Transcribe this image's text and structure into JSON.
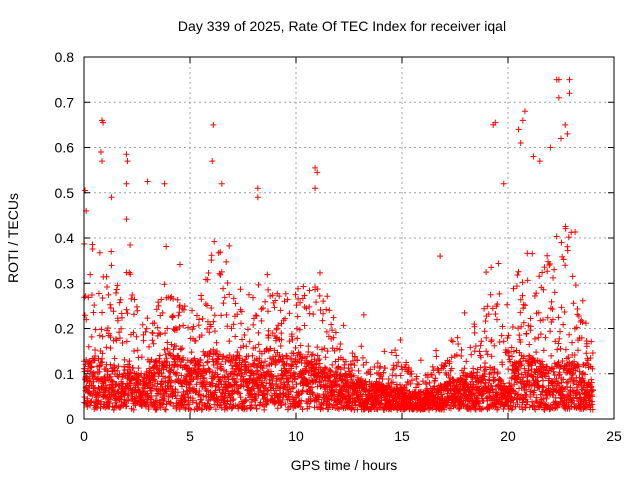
{
  "chart_data": {
    "type": "scatter",
    "title": "Day 339 of 2025, Rate Of TEC Index for receiver iqal",
    "xlabel": "GPS time / hours",
    "ylabel": "ROTI / TECUs",
    "xlim": [
      0,
      25
    ],
    "ylim": [
      0,
      0.8
    ],
    "x_ticks": [
      0,
      5,
      10,
      15,
      20,
      25
    ],
    "x_tick_labels": [
      "0",
      "5",
      "10",
      "15",
      "20",
      "25"
    ],
    "y_ticks": [
      0,
      0.1,
      0.2,
      0.3,
      0.4,
      0.5,
      0.6,
      0.7,
      0.8
    ],
    "y_tick_labels": [
      "0",
      "0.1",
      "0.2",
      "0.3",
      "0.4",
      "0.5",
      "0.6",
      "0.7",
      "0.8"
    ],
    "grid": true,
    "marker": "+",
    "color": "#ff0000",
    "envelope": [
      [
        0.0,
        0.12,
        0.45
      ],
      [
        0.5,
        0.12,
        0.38
      ],
      [
        1.0,
        0.11,
        0.4
      ],
      [
        1.5,
        0.1,
        0.35
      ],
      [
        2.0,
        0.1,
        0.45
      ],
      [
        2.5,
        0.09,
        0.32
      ],
      [
        3.0,
        0.08,
        0.22
      ],
      [
        3.5,
        0.12,
        0.38
      ],
      [
        4.0,
        0.13,
        0.36
      ],
      [
        4.5,
        0.12,
        0.33
      ],
      [
        5.0,
        0.11,
        0.3
      ],
      [
        5.5,
        0.12,
        0.32
      ],
      [
        6.0,
        0.14,
        0.45
      ],
      [
        6.5,
        0.13,
        0.42
      ],
      [
        7.0,
        0.12,
        0.34
      ],
      [
        7.5,
        0.12,
        0.32
      ],
      [
        8.0,
        0.12,
        0.35
      ],
      [
        8.5,
        0.11,
        0.33
      ],
      [
        9.0,
        0.12,
        0.35
      ],
      [
        9.5,
        0.12,
        0.34
      ],
      [
        10.0,
        0.13,
        0.36
      ],
      [
        10.5,
        0.12,
        0.37
      ],
      [
        11.0,
        0.11,
        0.4
      ],
      [
        11.5,
        0.09,
        0.28
      ],
      [
        12.0,
        0.08,
        0.22
      ],
      [
        12.5,
        0.08,
        0.18
      ],
      [
        13.0,
        0.07,
        0.17
      ],
      [
        13.5,
        0.06,
        0.15
      ],
      [
        14.0,
        0.06,
        0.14
      ],
      [
        14.5,
        0.05,
        0.15
      ],
      [
        15.0,
        0.05,
        0.18
      ],
      [
        15.5,
        0.04,
        0.12
      ],
      [
        16.0,
        0.04,
        0.11
      ],
      [
        16.5,
        0.04,
        0.14
      ],
      [
        17.0,
        0.06,
        0.15
      ],
      [
        17.5,
        0.07,
        0.2
      ],
      [
        18.0,
        0.08,
        0.22
      ],
      [
        18.5,
        0.09,
        0.28
      ],
      [
        19.0,
        0.1,
        0.32
      ],
      [
        19.5,
        0.09,
        0.38
      ],
      [
        20.0,
        0.06,
        0.22
      ],
      [
        20.5,
        0.12,
        0.42
      ],
      [
        21.0,
        0.12,
        0.38
      ],
      [
        21.5,
        0.11,
        0.4
      ],
      [
        22.0,
        0.1,
        0.45
      ],
      [
        22.5,
        0.11,
        0.55
      ],
      [
        23.0,
        0.12,
        0.5
      ],
      [
        23.5,
        0.09,
        0.3
      ],
      [
        24.0,
        0.05,
        0.2
      ]
    ],
    "outliers": [
      [
        0.85,
        0.66
      ],
      [
        0.9,
        0.655
      ],
      [
        0.8,
        0.59
      ],
      [
        0.85,
        0.57
      ],
      [
        2.0,
        0.585
      ],
      [
        2.05,
        0.57
      ],
      [
        2.0,
        0.52
      ],
      [
        3.0,
        0.525
      ],
      [
        3.8,
        0.52
      ],
      [
        6.1,
        0.65
      ],
      [
        6.05,
        0.57
      ],
      [
        6.5,
        0.52
      ],
      [
        8.2,
        0.51
      ],
      [
        8.2,
        0.49
      ],
      [
        10.9,
        0.555
      ],
      [
        11.0,
        0.545
      ],
      [
        10.9,
        0.51
      ],
      [
        16.8,
        0.36
      ],
      [
        13.2,
        0.23
      ],
      [
        19.3,
        0.65
      ],
      [
        19.4,
        0.655
      ],
      [
        19.8,
        0.52
      ],
      [
        20.5,
        0.64
      ],
      [
        20.7,
        0.66
      ],
      [
        20.8,
        0.68
      ],
      [
        22.3,
        0.75
      ],
      [
        22.4,
        0.75
      ],
      [
        22.4,
        0.71
      ],
      [
        22.9,
        0.75
      ],
      [
        22.9,
        0.72
      ],
      [
        22.7,
        0.65
      ],
      [
        22.8,
        0.63
      ],
      [
        22.5,
        0.62
      ],
      [
        22.0,
        0.6
      ],
      [
        21.5,
        0.57
      ],
      [
        21.2,
        0.58
      ],
      [
        20.6,
        0.61
      ],
      [
        0.05,
        0.505
      ],
      [
        0.1,
        0.46
      ],
      [
        1.3,
        0.49
      ]
    ]
  }
}
